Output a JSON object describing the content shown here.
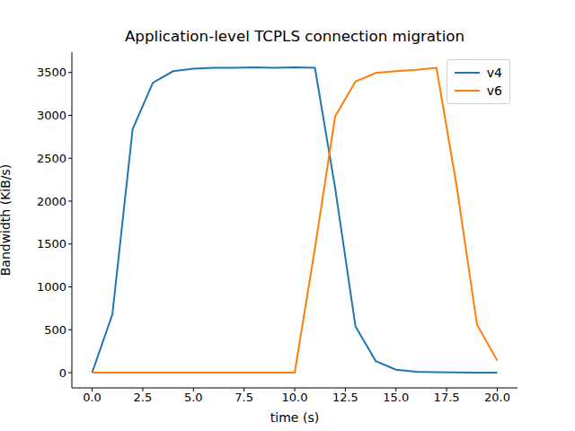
{
  "chart_data": {
    "type": "line",
    "title": "Application-level TCPLS connection migration",
    "x_label": "time (s)",
    "y_label": "Bandwidth (KiB/s)",
    "x": [
      0,
      1,
      2,
      3,
      4,
      5,
      6,
      7,
      8,
      9,
      10,
      11,
      12,
      13,
      14,
      15,
      16,
      17,
      18,
      19,
      20
    ],
    "series": [
      {
        "name": "v4",
        "color": "#1f77b4",
        "values": [
          0,
          680,
          2840,
          3380,
          3515,
          3545,
          3555,
          3555,
          3560,
          3555,
          3560,
          3555,
          2150,
          540,
          135,
          35,
          10,
          5,
          2,
          1,
          0
        ]
      },
      {
        "name": "v6",
        "color": "#ff7f0e",
        "values": [
          0,
          0,
          0,
          0,
          0,
          0,
          0,
          0,
          0,
          0,
          0,
          1450,
          2990,
          3395,
          3495,
          3515,
          3530,
          3555,
          2170,
          560,
          140
        ]
      }
    ],
    "xlim": [
      -1,
      21
    ],
    "xticks": [
      {
        "value": 0,
        "label": "0.0"
      },
      {
        "value": 2.5,
        "label": "2.5"
      },
      {
        "value": 5,
        "label": "5.0"
      },
      {
        "value": 7.5,
        "label": "7.5"
      },
      {
        "value": 10,
        "label": "10.0"
      },
      {
        "value": 12.5,
        "label": "12.5"
      },
      {
        "value": 15,
        "label": "15.0"
      },
      {
        "value": 17.5,
        "label": "17.5"
      },
      {
        "value": 20,
        "label": "20.0"
      }
    ],
    "ylim": [
      -178,
      3738
    ],
    "yticks": [
      0,
      500,
      1000,
      1500,
      2000,
      2500,
      3000,
      3500
    ],
    "grid": false,
    "legend": "upper right"
  }
}
